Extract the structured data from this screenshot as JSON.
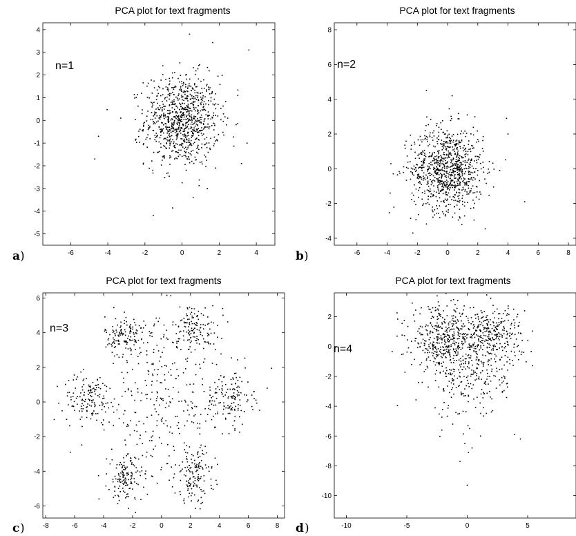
{
  "chart_data": [
    {
      "type": "scatter",
      "panel_label": "a",
      "title": "PCA plot for text fragments",
      "annotation": "n=1",
      "xlim": [
        -7.5,
        5
      ],
      "ylim": [
        -5.5,
        4.3
      ],
      "xticks": [
        -6,
        -4,
        -2,
        0,
        2,
        4
      ],
      "yticks": [
        -5,
        -4,
        -3,
        -2,
        -1,
        0,
        1,
        2,
        3,
        4
      ],
      "series": [
        {
          "kind": "cluster",
          "count": 900,
          "cx": 0.0,
          "cy": 0.0,
          "sx": 1.0,
          "sy": 1.0
        },
        {
          "kind": "points",
          "x": [
            -4.7,
            -4.5,
            3.6,
            3.0,
            0.4,
            0.6,
            -3.3,
            3.2,
            3.5
          ],
          "y": [
            -1.7,
            -0.7,
            3.1,
            1.1,
            3.8,
            -3.4,
            0.1,
            -1.9,
            -1.0
          ]
        }
      ]
    },
    {
      "type": "scatter",
      "panel_label": "b",
      "title": "PCA plot for text fragments",
      "annotation": "n=2",
      "xlim": [
        -7.5,
        8.5
      ],
      "ylim": [
        -4.4,
        8.4
      ],
      "xticks": [
        -6,
        -4,
        -2,
        0,
        2,
        4,
        6,
        8
      ],
      "yticks": [
        -4,
        -2,
        0,
        2,
        4,
        6,
        8
      ],
      "series": [
        {
          "kind": "cluster",
          "count": 900,
          "cx": 0.0,
          "cy": 0.0,
          "sx": 1.2,
          "sy": 1.2
        },
        {
          "kind": "points",
          "x": [
            -1.4,
            0.3,
            5.1,
            -3.8,
            4.0,
            3.9,
            -2.3
          ],
          "y": [
            4.5,
            4.2,
            -1.9,
            -1.4,
            2.0,
            2.9,
            -3.7
          ]
        }
      ]
    },
    {
      "type": "scatter",
      "panel_label": "c",
      "title": "PCA plot for text fragments",
      "annotation": "n=3",
      "xlim": [
        -8.2,
        8.5
      ],
      "ylim": [
        -6.7,
        6.3
      ],
      "xticks": [
        -8,
        -6,
        -4,
        -2,
        0,
        2,
        4,
        6,
        8
      ],
      "yticks": [
        -6,
        -4,
        -2,
        0,
        2,
        4,
        6
      ],
      "series": [
        {
          "kind": "cluster",
          "count": 140,
          "cx": -2.5,
          "cy": 3.8,
          "sx": 0.7,
          "sy": 0.6
        },
        {
          "kind": "cluster",
          "count": 140,
          "cx": 2.3,
          "cy": 4.2,
          "sx": 0.8,
          "sy": 0.7
        },
        {
          "kind": "cluster",
          "count": 140,
          "cx": -5.0,
          "cy": 0.2,
          "sx": 0.9,
          "sy": 0.7
        },
        {
          "kind": "cluster",
          "count": 140,
          "cx": 4.7,
          "cy": 0.2,
          "sx": 0.8,
          "sy": 0.8
        },
        {
          "kind": "cluster",
          "count": 140,
          "cx": -2.5,
          "cy": -4.4,
          "sx": 0.6,
          "sy": 0.7
        },
        {
          "kind": "cluster",
          "count": 140,
          "cx": 2.3,
          "cy": -4.2,
          "sx": 0.7,
          "sy": 0.8
        },
        {
          "kind": "cluster",
          "count": 280,
          "cx": 0.0,
          "cy": 0.0,
          "sx": 2.2,
          "sy": 2.4
        },
        {
          "kind": "points",
          "x": [
            7.3,
            -6.3,
            -7.2,
            6.4
          ],
          "y": [
            0.8,
            -2.9,
            0.9,
            0.6
          ]
        }
      ]
    },
    {
      "type": "scatter",
      "panel_label": "d",
      "title": "PCA plot for text fragments",
      "annotation": "n=4",
      "xlim": [
        -11,
        9
      ],
      "ylim": [
        -11.5,
        3.6
      ],
      "xticks": [
        -10,
        -5,
        0,
        5
      ],
      "yticks": [
        -10,
        -8,
        -6,
        -4,
        -2,
        0,
        2
      ],
      "series": [
        {
          "kind": "cluster",
          "count": 320,
          "cx": -2.2,
          "cy": 0.6,
          "sx": 1.2,
          "sy": 1.0
        },
        {
          "kind": "cluster",
          "count": 320,
          "cx": 2.0,
          "cy": 0.8,
          "sx": 1.3,
          "sy": 1.0
        },
        {
          "kind": "cluster",
          "count": 300,
          "cx": 0.0,
          "cy": -1.6,
          "sx": 1.6,
          "sy": 1.6
        },
        {
          "kind": "points",
          "x": [
            0.0,
            -0.6,
            0.1,
            0.4,
            -0.2,
            1.1,
            -5.8,
            -5.3,
            3.9,
            4.4,
            0.2,
            -1.2,
            -2.1
          ],
          "y": [
            -9.3,
            -7.7,
            -7.1,
            -6.8,
            -6.5,
            -6.0,
            0.7,
            -0.5,
            -5.9,
            -6.2,
            -5.5,
            -5.2,
            -5.6
          ]
        }
      ]
    }
  ]
}
